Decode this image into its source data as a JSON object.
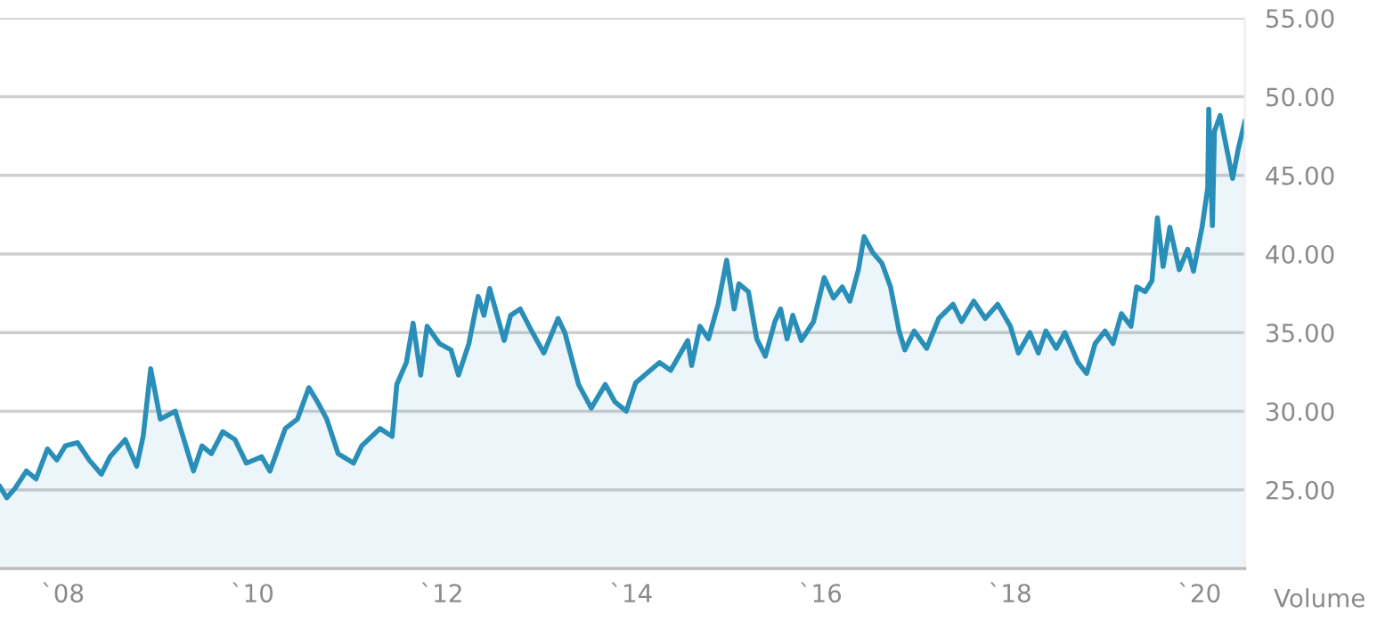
{
  "chart_data": {
    "type": "area",
    "x": [
      "2007-05-04",
      "2007-05-30",
      "2007-07-01",
      "2007-08-14",
      "2007-09-20",
      "2007-11-03",
      "2007-12-09",
      "2008-01-11",
      "2008-02-27",
      "2008-04-12",
      "2008-05-29",
      "2008-07-01",
      "2008-08-29",
      "2008-10-12",
      "2008-11-06",
      "2008-12-05",
      "2009-01-11",
      "2009-03-10",
      "2009-05-19",
      "2009-06-21",
      "2009-07-27",
      "2009-09-09",
      "2009-10-26",
      "2009-12-09",
      "2010-02-06",
      "2010-03-10",
      "2010-05-08",
      "2010-06-24",
      "2010-08-07",
      "2010-09-09",
      "2010-10-15",
      "2010-11-28",
      "2011-01-26",
      "2011-02-27",
      "2011-05-08",
      "2011-06-24",
      "2011-07-12",
      "2011-08-18",
      "2011-09-13",
      "2011-10-12",
      "2011-11-06",
      "2011-12-24",
      "2012-02-06",
      "2012-03-06",
      "2012-04-15",
      "2012-05-21",
      "2012-06-12",
      "2012-07-04",
      "2012-08-29",
      "2012-09-23",
      "2012-10-30",
      "2012-12-13",
      "2013-01-29",
      "2013-03-25",
      "2013-04-20",
      "2013-06-12",
      "2013-07-31",
      "2013-09-23",
      "2013-10-30",
      "2013-12-13",
      "2014-01-18",
      "2014-04-20",
      "2014-06-02",
      "2014-08-07",
      "2014-08-22",
      "2014-09-23",
      "2014-10-26",
      "2014-12-02",
      "2015-01-04",
      "2015-02-02",
      "2015-02-20",
      "2015-03-29",
      "2015-04-30",
      "2015-06-02",
      "2015-07-09",
      "2015-07-31",
      "2015-08-25",
      "2015-09-16",
      "2015-10-19",
      "2015-12-05",
      "2016-01-15",
      "2016-02-20",
      "2016-03-25",
      "2016-04-23",
      "2016-05-26",
      "2016-06-17",
      "2016-07-20",
      "2016-08-25",
      "2016-09-27",
      "2016-10-30",
      "2016-11-21",
      "2016-12-27",
      "2017-02-13",
      "2017-04-01",
      "2017-05-26",
      "2017-06-28",
      "2017-08-14",
      "2017-09-27",
      "2017-11-14",
      "2018-01-02",
      "2018-02-02",
      "2018-03-18",
      "2018-04-20",
      "2018-05-19",
      "2018-06-28",
      "2018-07-31",
      "2018-09-20",
      "2018-10-23",
      "2018-11-25",
      "2019-01-02",
      "2019-02-02",
      "2019-03-06",
      "2019-04-12",
      "2019-05-04",
      "2019-06-06",
      "2019-07-02",
      "2019-07-23",
      "2019-08-14",
      "2019-09-09",
      "2019-10-15",
      "2019-11-17",
      "2019-12-09",
      "2020-01-11",
      "2020-02-02",
      "2020-02-06",
      "2020-02-20",
      "2020-02-28",
      "2020-03-21",
      "2020-04-09",
      "2020-05-08",
      "2020-05-30",
      "2020-06-24"
    ],
    "series": [
      {
        "color": "#2a8fb8",
        "values": [
          25.2,
          24.5,
          25.1,
          26.2,
          25.7,
          27.6,
          26.9,
          27.8,
          28.0,
          26.9,
          26.0,
          27.1,
          28.2,
          26.5,
          28.4,
          32.7,
          29.5,
          30.0,
          26.2,
          27.8,
          27.3,
          28.7,
          28.2,
          26.7,
          27.1,
          26.2,
          28.9,
          29.5,
          31.5,
          30.6,
          29.5,
          27.3,
          26.7,
          27.8,
          28.9,
          28.4,
          31.7,
          33.1,
          35.6,
          32.3,
          35.4,
          34.3,
          33.9,
          32.3,
          34.3,
          37.3,
          36.1,
          37.8,
          34.5,
          36.1,
          36.5,
          35.1,
          33.7,
          35.9,
          35.0,
          31.7,
          30.2,
          31.7,
          30.6,
          30.0,
          31.8,
          33.1,
          32.6,
          34.5,
          32.9,
          35.4,
          34.6,
          36.8,
          39.6,
          36.5,
          38.1,
          37.6,
          34.6,
          33.5,
          35.7,
          36.5,
          34.6,
          36.1,
          34.5,
          35.7,
          38.5,
          37.2,
          37.9,
          37.0,
          39.0,
          41.1,
          40.1,
          39.4,
          37.9,
          35.1,
          33.9,
          35.1,
          34.0,
          35.9,
          36.8,
          35.7,
          37.0,
          35.9,
          36.8,
          35.4,
          33.7,
          35.0,
          33.7,
          35.1,
          34.0,
          35.0,
          33.1,
          32.4,
          34.3,
          35.1,
          34.3,
          36.2,
          35.4,
          37.9,
          37.6,
          38.3,
          42.3,
          39.2,
          41.7,
          39.0,
          40.3,
          38.9,
          41.7,
          44.2,
          49.2,
          41.8,
          47.8,
          48.8,
          47.2,
          44.8,
          46.7,
          48.4
        ]
      }
    ],
    "xlim": [
      "2007-05-04",
      "2020-06-24"
    ],
    "xticks": [
      {
        "value": "2008-01-01",
        "label": "`08"
      },
      {
        "value": "2010-01-01",
        "label": "`10"
      },
      {
        "value": "2012-01-01",
        "label": "`12"
      },
      {
        "value": "2014-01-01",
        "label": "`14"
      },
      {
        "value": "2016-01-01",
        "label": "`16"
      },
      {
        "value": "2018-01-01",
        "label": "`18"
      },
      {
        "value": "2020-01-01",
        "label": "`20"
      }
    ],
    "ylim": [
      20,
      55
    ],
    "yticks": [
      {
        "value": 25,
        "label": "25.00"
      },
      {
        "value": 30,
        "label": "30.00"
      },
      {
        "value": 35,
        "label": "35.00"
      },
      {
        "value": 40,
        "label": "40.00"
      },
      {
        "value": 45,
        "label": "45.00"
      },
      {
        "value": 50,
        "label": "50.00"
      },
      {
        "value": 55,
        "label": "55.00"
      }
    ],
    "grid": "y",
    "annotations": [
      "Volume"
    ]
  }
}
